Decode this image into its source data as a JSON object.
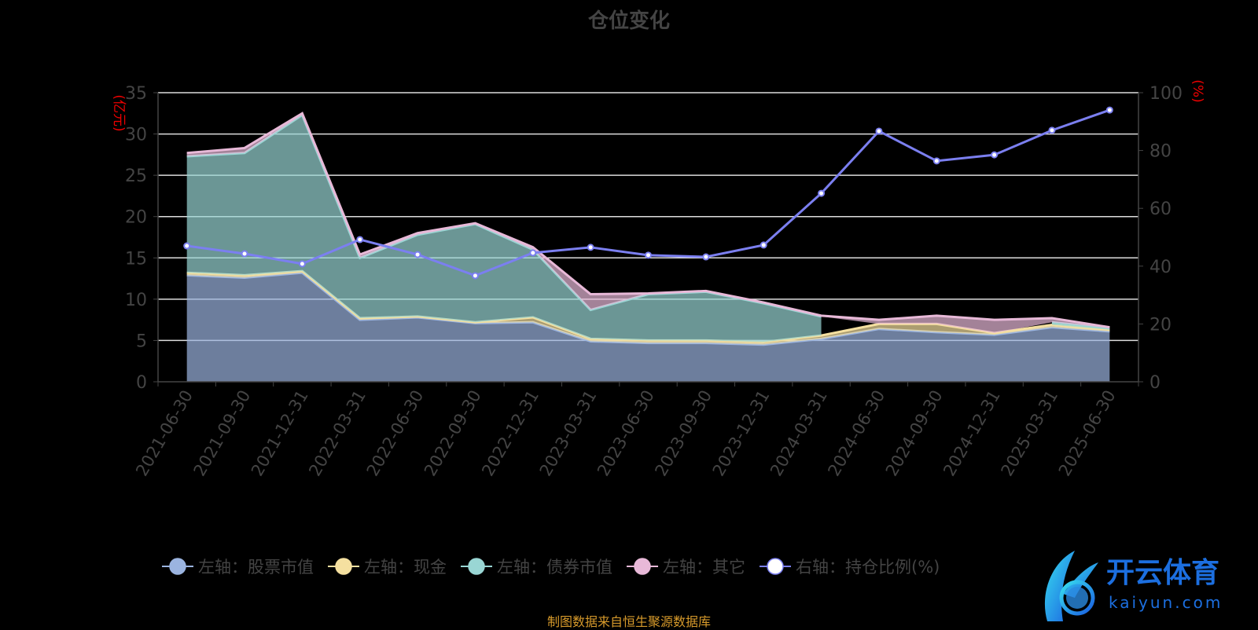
{
  "chart_data": {
    "type": "area",
    "title": "仓位变化",
    "y_left_label": "(亿元)",
    "y_right_label": "(%)",
    "y_left_range": [
      0,
      35
    ],
    "y_left_ticks": [
      0,
      5,
      10,
      15,
      20,
      25,
      30,
      35
    ],
    "y_right_range": [
      0,
      100
    ],
    "y_right_ticks": [
      0,
      20,
      40,
      60,
      80,
      100
    ],
    "grid": true,
    "stacked": true,
    "legend_placement": "bottom",
    "categories": [
      "2021-06-30",
      "2021-09-30",
      "2021-12-31",
      "2022-03-31",
      "2022-06-30",
      "2022-09-30",
      "2022-12-31",
      "2023-03-31",
      "2023-06-30",
      "2023-09-30",
      "2023-12-31",
      "2024-03-31",
      "2024-06-30",
      "2024-09-30",
      "2024-12-31",
      "2025-03-31",
      "2025-06-30"
    ],
    "series": [
      {
        "name": "左轴：股票市值",
        "axis": "left",
        "color": "#9bb4e0",
        "values": [
          12.9,
          12.6,
          13.2,
          7.5,
          7.8,
          7.1,
          7.2,
          4.9,
          4.7,
          4.7,
          4.5,
          5.2,
          6.4,
          6.0,
          5.7,
          6.6,
          6.1
        ]
      },
      {
        "name": "左轴：现金",
        "axis": "left",
        "color": "#f5e0a0",
        "values": [
          0.3,
          0.3,
          0.2,
          0.2,
          0.1,
          0.1,
          0.6,
          0.3,
          0.3,
          0.3,
          0.3,
          0.4,
          0.6,
          1.0,
          0.2,
          0.3,
          0.2
        ]
      },
      {
        "name": "左轴：债券市值",
        "axis": "left",
        "color": "#99d6d4",
        "values": [
          14.1,
          14.8,
          18.9,
          7.3,
          9.9,
          11.9,
          8.2,
          3.5,
          5.6,
          5.9,
          4.7,
          2.3,
          null,
          null,
          null,
          0.3,
          0.2
        ]
      },
      {
        "name": "左轴：其它",
        "axis": "left",
        "color": "#e8b9d8",
        "values": [
          0.4,
          0.6,
          0.2,
          0.4,
          0.2,
          0.1,
          0.3,
          1.9,
          0.1,
          0.1,
          0.1,
          0.1,
          0.5,
          1.0,
          1.6,
          0.5,
          0.1
        ]
      },
      {
        "name": "右轴：持仓比例(%)",
        "axis": "right",
        "type": "line",
        "color": "#7b7ff0",
        "values": [
          47.0,
          44.3,
          40.8,
          49.2,
          44.0,
          36.7,
          44.6,
          46.5,
          43.8,
          43.2,
          47.3,
          65.2,
          86.7,
          76.4,
          78.5,
          87.0,
          94.0
        ]
      }
    ]
  },
  "source": "制图数据来自恒生聚源数据库",
  "watermark": {
    "brand": "开云体育",
    "domain": "kaiyun.com"
  }
}
